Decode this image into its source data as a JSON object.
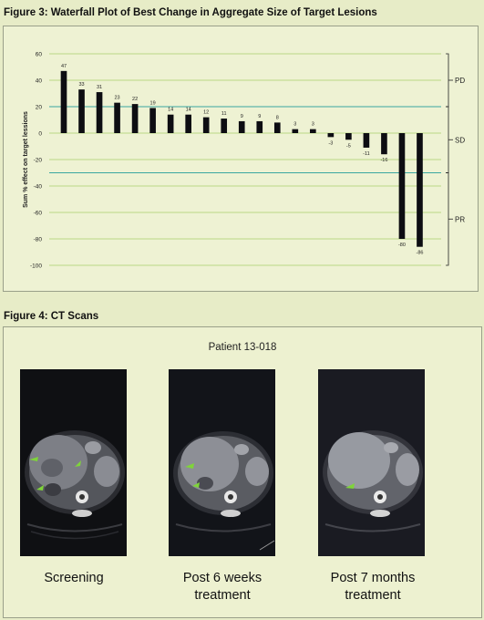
{
  "figure3": {
    "title": "Figure 3: Waterfall Plot of Best Change in Aggregate Size of Target Lesions"
  },
  "chart_data": {
    "type": "bar",
    "title": "Figure 3: Waterfall Plot of Best Change in Aggregate Size of Target Lesions",
    "xlabel": "",
    "ylabel": "Sum % effect on target lessions",
    "ylim": [
      -100,
      60
    ],
    "yticks": [
      60,
      40,
      20,
      0,
      -20,
      -40,
      -60,
      -80,
      -100
    ],
    "grid": true,
    "values": [
      47,
      33,
      31,
      23,
      22,
      19,
      14,
      14,
      12,
      11,
      9,
      9,
      8,
      3,
      3,
      -3,
      -5,
      -11,
      -16,
      -80,
      -86
    ],
    "labels": [
      "47",
      "33",
      "31",
      "23",
      "22",
      "19",
      "14",
      "14",
      "12",
      "11",
      "9",
      "9",
      "8",
      "3",
      "3",
      "-3",
      "-5",
      "-11",
      "-16",
      "-80",
      "-86"
    ],
    "reference_lines": [
      20,
      -30
    ],
    "bar_color": "#0d0d12",
    "reference_line_color": "#3aa7a0",
    "grid_color": "#a9cf6a",
    "response_categories": [
      "PD",
      "SD",
      "PR"
    ]
  },
  "figure4": {
    "title": "Figure 4: CT Scans",
    "patient": "Patient 13-018",
    "scans": [
      {
        "caption_line1": "Screening",
        "caption_line2": ""
      },
      {
        "caption_line1": "Post 6 weeks",
        "caption_line2": "treatment"
      },
      {
        "caption_line1": "Post 7 months",
        "caption_line2": "treatment"
      }
    ],
    "arrow_color": "#7fd43a"
  }
}
